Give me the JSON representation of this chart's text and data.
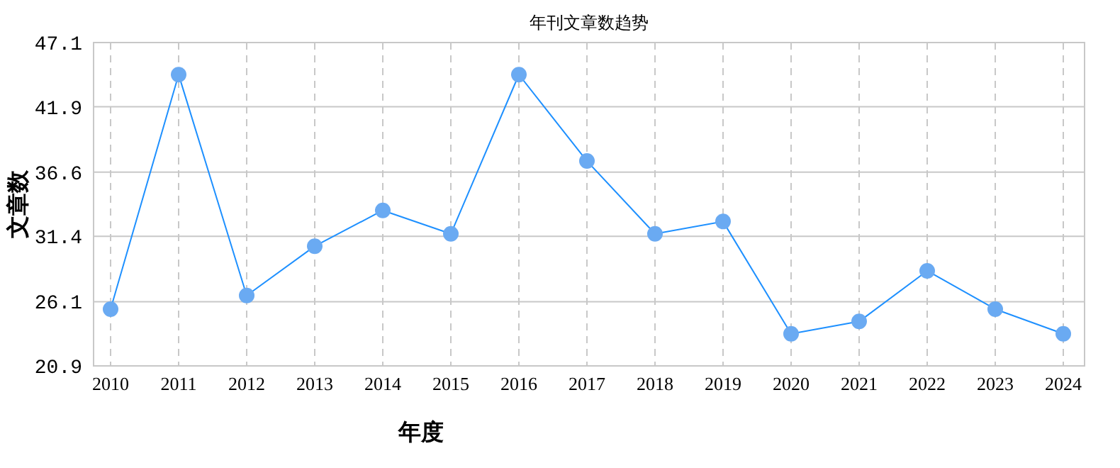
{
  "chart_data": {
    "type": "line",
    "title": "年刊文章数趋势",
    "xlabel": "年度",
    "ylabel": "文章数",
    "categories": [
      "2010",
      "2011",
      "2012",
      "2013",
      "2014",
      "2015",
      "2016",
      "2017",
      "2018",
      "2019",
      "2020",
      "2021",
      "2022",
      "2023",
      "2024"
    ],
    "values": [
      25.5,
      44.5,
      26.6,
      30.6,
      33.5,
      31.6,
      44.5,
      37.5,
      31.6,
      32.6,
      23.5,
      24.5,
      28.6,
      25.5,
      23.5
    ],
    "color": "#1e90ff",
    "ylim": [
      20.9,
      47.1
    ],
    "yticks": [
      20.9,
      26.1,
      31.4,
      36.6,
      41.9,
      47.1
    ],
    "grid": true,
    "marker": "circle",
    "line_style": "solid"
  }
}
